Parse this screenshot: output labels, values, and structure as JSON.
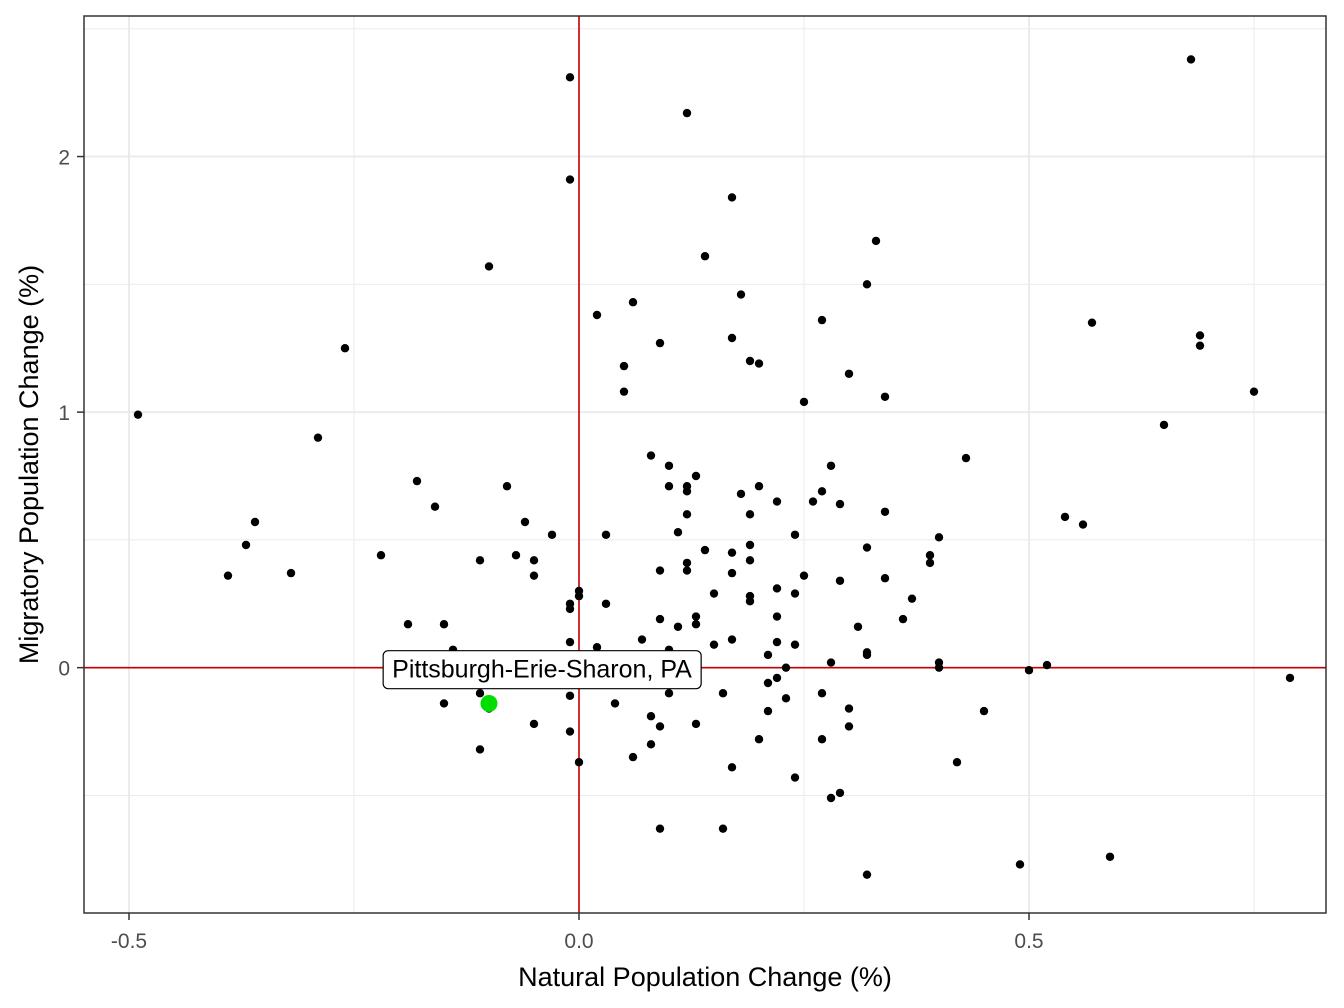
{
  "chart_data": {
    "type": "scatter",
    "xlabel": "Natural Population Change (%)",
    "ylabel": "Migratory Population Change (%)",
    "xlim": [
      -0.55,
      0.83
    ],
    "ylim": [
      -0.96,
      2.55
    ],
    "x_ticks": [
      -0.5,
      0.0,
      0.5
    ],
    "x_tick_labels": [
      "-0.5",
      "0.0",
      "0.5"
    ],
    "y_ticks": [
      0,
      1,
      2
    ],
    "y_tick_labels": [
      "0",
      "1",
      "2"
    ],
    "grid": true,
    "reference_lines": {
      "x": 0,
      "y": 0,
      "color": "#cc0000"
    },
    "highlight": {
      "label": "Pittsburgh-Erie-Sharon, PA",
      "x": -0.1,
      "y": -0.14,
      "color": "#00dd00"
    },
    "points": [
      [
        -0.49,
        0.99
      ],
      [
        -0.39,
        0.36
      ],
      [
        -0.37,
        0.48
      ],
      [
        -0.36,
        0.57
      ],
      [
        -0.32,
        0.37
      ],
      [
        -0.29,
        0.9
      ],
      [
        -0.26,
        1.25
      ],
      [
        -0.22,
        0.44
      ],
      [
        -0.19,
        0.17
      ],
      [
        -0.18,
        0.73
      ],
      [
        -0.16,
        0.63
      ],
      [
        -0.15,
        0.17
      ],
      [
        -0.15,
        -0.14
      ],
      [
        -0.14,
        0.07
      ],
      [
        -0.11,
        0.42
      ],
      [
        -0.11,
        -0.1
      ],
      [
        -0.11,
        -0.32
      ],
      [
        -0.1,
        1.57
      ],
      [
        -0.1,
        -0.16
      ],
      [
        -0.08,
        0.71
      ],
      [
        -0.07,
        0.44
      ],
      [
        -0.06,
        0.57
      ],
      [
        -0.05,
        0.42
      ],
      [
        -0.05,
        0.36
      ],
      [
        -0.05,
        -0.22
      ],
      [
        -0.03,
        0.52
      ],
      [
        -0.01,
        2.31
      ],
      [
        -0.01,
        1.91
      ],
      [
        -0.01,
        0.25
      ],
      [
        -0.01,
        0.23
      ],
      [
        -0.01,
        0.1
      ],
      [
        -0.01,
        -0.11
      ],
      [
        -0.01,
        -0.25
      ],
      [
        0.0,
        0.3
      ],
      [
        0.0,
        0.28
      ],
      [
        0.0,
        -0.37
      ],
      [
        0.02,
        1.38
      ],
      [
        0.02,
        0.08
      ],
      [
        0.03,
        0.52
      ],
      [
        0.03,
        0.25
      ],
      [
        0.04,
        -0.14
      ],
      [
        0.05,
        1.18
      ],
      [
        0.05,
        1.08
      ],
      [
        0.06,
        1.43
      ],
      [
        0.06,
        -0.35
      ],
      [
        0.07,
        0.11
      ],
      [
        0.08,
        0.83
      ],
      [
        0.08,
        -0.19
      ],
      [
        0.08,
        -0.3
      ],
      [
        0.09,
        1.27
      ],
      [
        0.09,
        0.38
      ],
      [
        0.09,
        0.19
      ],
      [
        0.09,
        -0.23
      ],
      [
        0.09,
        -0.63
      ],
      [
        0.1,
        0.79
      ],
      [
        0.1,
        0.71
      ],
      [
        0.1,
        0.07
      ],
      [
        0.1,
        -0.1
      ],
      [
        0.11,
        0.53
      ],
      [
        0.11,
        0.16
      ],
      [
        0.12,
        0.71
      ],
      [
        0.12,
        0.69
      ],
      [
        0.12,
        0.6
      ],
      [
        0.12,
        0.41
      ],
      [
        0.12,
        0.38
      ],
      [
        0.12,
        2.17
      ],
      [
        0.13,
        0.75
      ],
      [
        0.13,
        0.2
      ],
      [
        0.13,
        0.17
      ],
      [
        0.13,
        -0.22
      ],
      [
        0.14,
        1.61
      ],
      [
        0.14,
        0.46
      ],
      [
        0.15,
        0.29
      ],
      [
        0.15,
        0.09
      ],
      [
        0.16,
        -0.63
      ],
      [
        0.16,
        -0.1
      ],
      [
        0.17,
        1.84
      ],
      [
        0.17,
        1.29
      ],
      [
        0.17,
        0.45
      ],
      [
        0.17,
        0.37
      ],
      [
        0.17,
        0.11
      ],
      [
        0.17,
        -0.39
      ],
      [
        0.18,
        1.46
      ],
      [
        0.18,
        0.68
      ],
      [
        0.19,
        1.2
      ],
      [
        0.19,
        0.6
      ],
      [
        0.19,
        0.48
      ],
      [
        0.19,
        0.42
      ],
      [
        0.19,
        0.28
      ],
      [
        0.19,
        0.26
      ],
      [
        0.2,
        1.19
      ],
      [
        0.2,
        0.71
      ],
      [
        0.2,
        -0.28
      ],
      [
        0.21,
        0.05
      ],
      [
        0.21,
        -0.06
      ],
      [
        0.21,
        -0.17
      ],
      [
        0.22,
        0.65
      ],
      [
        0.22,
        0.31
      ],
      [
        0.22,
        0.2
      ],
      [
        0.22,
        0.1
      ],
      [
        0.22,
        -0.04
      ],
      [
        0.23,
        0.0
      ],
      [
        0.23,
        -0.12
      ],
      [
        0.24,
        0.52
      ],
      [
        0.24,
        0.29
      ],
      [
        0.24,
        0.09
      ],
      [
        0.24,
        -0.43
      ],
      [
        0.25,
        1.04
      ],
      [
        0.25,
        0.36
      ],
      [
        0.26,
        0.65
      ],
      [
        0.27,
        1.36
      ],
      [
        0.27,
        0.69
      ],
      [
        0.27,
        -0.1
      ],
      [
        0.27,
        -0.28
      ],
      [
        0.28,
        0.79
      ],
      [
        0.28,
        0.02
      ],
      [
        0.28,
        -0.51
      ],
      [
        0.29,
        0.64
      ],
      [
        0.29,
        0.34
      ],
      [
        0.29,
        -0.49
      ],
      [
        0.3,
        1.15
      ],
      [
        0.3,
        -0.16
      ],
      [
        0.3,
        -0.23
      ],
      [
        0.31,
        0.16
      ],
      [
        0.32,
        1.5
      ],
      [
        0.32,
        0.47
      ],
      [
        0.32,
        0.06
      ],
      [
        0.32,
        0.05
      ],
      [
        0.32,
        -0.81
      ],
      [
        0.33,
        1.67
      ],
      [
        0.34,
        1.06
      ],
      [
        0.34,
        0.61
      ],
      [
        0.34,
        0.35
      ],
      [
        0.36,
        0.19
      ],
      [
        0.37,
        0.27
      ],
      [
        0.39,
        0.44
      ],
      [
        0.39,
        0.41
      ],
      [
        0.4,
        0.51
      ],
      [
        0.4,
        0.02
      ],
      [
        0.4,
        0.0
      ],
      [
        0.42,
        -0.37
      ],
      [
        0.43,
        0.82
      ],
      [
        0.45,
        -0.17
      ],
      [
        0.49,
        -0.77
      ],
      [
        0.5,
        -0.01
      ],
      [
        0.52,
        0.01
      ],
      [
        0.54,
        0.59
      ],
      [
        0.56,
        0.56
      ],
      [
        0.57,
        1.35
      ],
      [
        0.59,
        -0.74
      ],
      [
        0.65,
        0.95
      ],
      [
        0.68,
        2.38
      ],
      [
        0.69,
        1.3
      ],
      [
        0.69,
        1.26
      ],
      [
        0.75,
        1.08
      ],
      [
        0.79,
        -0.04
      ]
    ]
  }
}
